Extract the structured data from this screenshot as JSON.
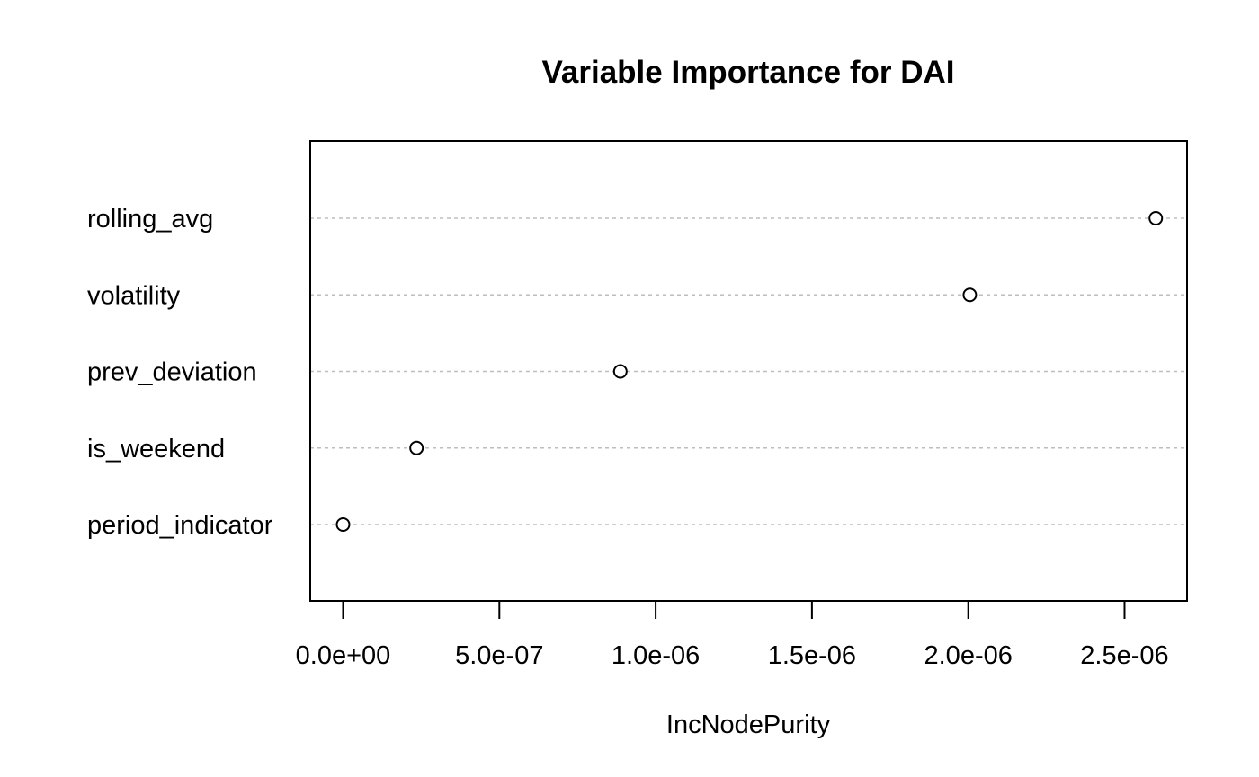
{
  "chart_data": {
    "type": "scatter",
    "subtype": "dotchart",
    "title": "Variable Importance for DAI",
    "xlabel": "IncNodePurity",
    "ylabel": "",
    "categories": [
      "rolling_avg",
      "volatility",
      "prev_deviation",
      "is_weekend",
      "period_indicator"
    ],
    "values": [
      2.6e-06,
      2.005e-06,
      8.87e-07,
      2.35e-07,
      0
    ],
    "xlim": [
      -1.05e-07,
      2.7e-06
    ],
    "x_ticks": [
      0,
      5e-07,
      1e-06,
      1.5e-06,
      2e-06,
      2.5e-06
    ],
    "x_tick_labels": [
      "0.0e+00",
      "5.0e-07",
      "1.0e-06",
      "1.5e-06",
      "2.0e-06",
      "2.5e-06"
    ],
    "grid": "horizontal dotted",
    "marker": "open-circle",
    "colors": {
      "point_stroke": "#000000",
      "gridline": "#bebebe",
      "frame": "#000000"
    }
  }
}
